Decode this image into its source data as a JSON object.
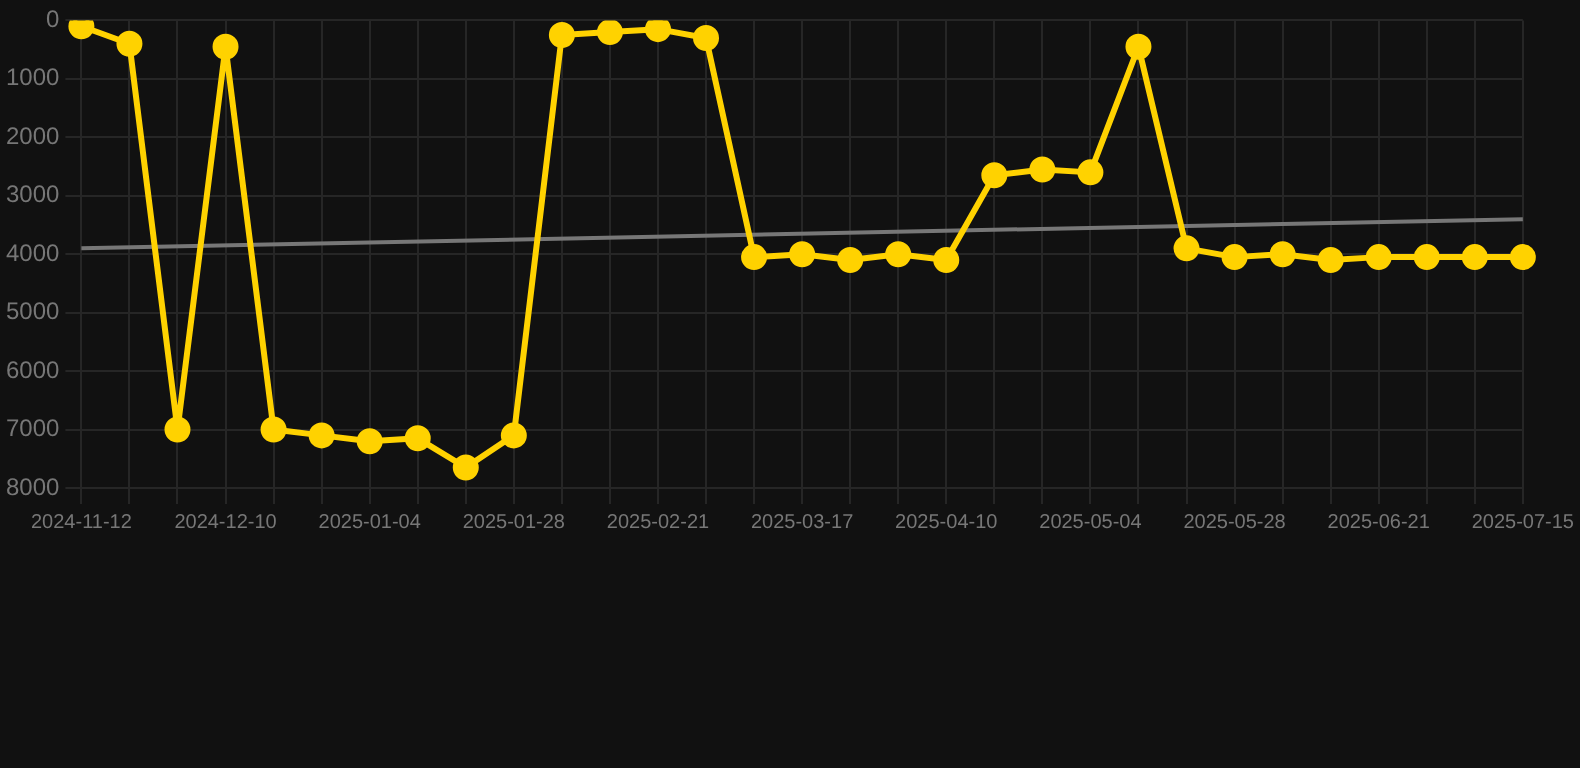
{
  "chart_data": {
    "type": "line",
    "categories": [
      "2024-11-12",
      null,
      null,
      "2024-12-10",
      null,
      null,
      "2025-01-04",
      null,
      null,
      "2025-01-28",
      null,
      null,
      "2025-02-21",
      null,
      null,
      "2025-03-17",
      null,
      null,
      "2025-04-10",
      null,
      null,
      "2025-05-04",
      null,
      null,
      "2025-05-28",
      null,
      null,
      "2025-06-21",
      null,
      null,
      "2025-07-15"
    ],
    "series": [
      {
        "color": "#ffd200",
        "values": [
          100,
          400,
          7000,
          450,
          7000,
          7100,
          7200,
          7150,
          7650,
          7100,
          250,
          200,
          150,
          300,
          4050,
          4000,
          4100,
          4000,
          4100,
          2650,
          2550,
          2600,
          450,
          3900,
          4050,
          4000,
          4100,
          4050,
          4050,
          4050,
          4050
        ],
        "marker": "circle"
      },
      {
        "type": "line",
        "color": "#777777",
        "values": [
          3900,
          null,
          null,
          null,
          null,
          null,
          null,
          null,
          null,
          null,
          null,
          null,
          null,
          null,
          null,
          null,
          null,
          null,
          null,
          null,
          null,
          null,
          null,
          null,
          null,
          null,
          null,
          null,
          null,
          null,
          3400
        ],
        "marker": "none"
      }
    ],
    "ylim": [
      8000,
      0
    ],
    "yticks": [
      0,
      1000,
      2000,
      3000,
      4000,
      5000,
      6000,
      7000,
      8000
    ],
    "grid": true,
    "legend": false
  }
}
